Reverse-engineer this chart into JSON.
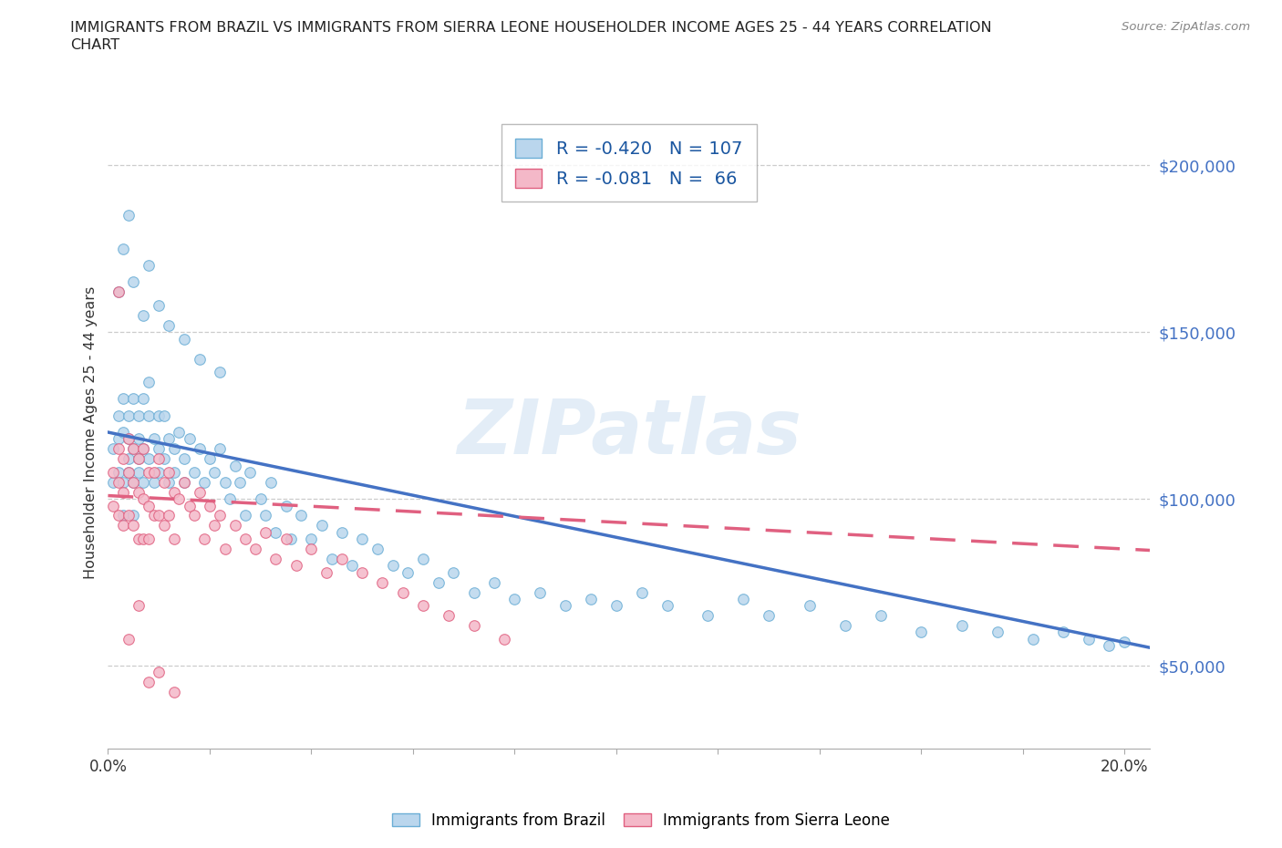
{
  "title_line1": "IMMIGRANTS FROM BRAZIL VS IMMIGRANTS FROM SIERRA LEONE HOUSEHOLDER INCOME AGES 25 - 44 YEARS CORRELATION",
  "title_line2": "CHART",
  "source_text": "Source: ZipAtlas.com",
  "ylabel": "Householder Income Ages 25 - 44 years",
  "xlim": [
    0.0,
    0.205
  ],
  "ylim": [
    25000,
    215000
  ],
  "yticks": [
    50000,
    100000,
    150000,
    200000
  ],
  "ytick_labels": [
    "$50,000",
    "$100,000",
    "$150,000",
    "$200,000"
  ],
  "xticks": [
    0.0,
    0.02,
    0.04,
    0.06,
    0.08,
    0.1,
    0.12,
    0.14,
    0.16,
    0.18,
    0.2
  ],
  "xtick_labels": [
    "0.0%",
    "",
    "",
    "",
    "",
    "",
    "",
    "",
    "",
    "",
    "20.0%"
  ],
  "brazil_fill": "#bad6ed",
  "brazil_edge": "#6baed6",
  "sierra_fill": "#f4b8c8",
  "sierra_edge": "#e06080",
  "brazil_line": "#4472c4",
  "sierra_line": "#e06080",
  "grid_color": "#cccccc",
  "R_brazil": -0.42,
  "N_brazil": 107,
  "R_sierra": -0.081,
  "N_sierra": 66,
  "brazil_trend_x0": 0.0,
  "brazil_trend_y0": 120000,
  "brazil_trend_x1": 0.2,
  "brazil_trend_y1": 57000,
  "sierra_trend_x0": 0.0,
  "sierra_trend_y0": 101000,
  "sierra_trend_x1": 0.2,
  "sierra_trend_y1": 85000,
  "brazil_x": [
    0.001,
    0.001,
    0.002,
    0.002,
    0.002,
    0.003,
    0.003,
    0.003,
    0.003,
    0.004,
    0.004,
    0.004,
    0.004,
    0.005,
    0.005,
    0.005,
    0.005,
    0.006,
    0.006,
    0.006,
    0.006,
    0.007,
    0.007,
    0.007,
    0.008,
    0.008,
    0.008,
    0.009,
    0.009,
    0.01,
    0.01,
    0.01,
    0.011,
    0.011,
    0.012,
    0.012,
    0.013,
    0.013,
    0.014,
    0.015,
    0.015,
    0.016,
    0.017,
    0.018,
    0.019,
    0.02,
    0.021,
    0.022,
    0.023,
    0.024,
    0.025,
    0.026,
    0.027,
    0.028,
    0.03,
    0.031,
    0.032,
    0.033,
    0.035,
    0.036,
    0.038,
    0.04,
    0.042,
    0.044,
    0.046,
    0.048,
    0.05,
    0.053,
    0.056,
    0.059,
    0.062,
    0.065,
    0.068,
    0.072,
    0.076,
    0.08,
    0.085,
    0.09,
    0.095,
    0.1,
    0.105,
    0.11,
    0.118,
    0.125,
    0.13,
    0.138,
    0.145,
    0.152,
    0.16,
    0.168,
    0.175,
    0.182,
    0.188,
    0.193,
    0.197,
    0.2,
    0.002,
    0.003,
    0.004,
    0.005,
    0.007,
    0.008,
    0.01,
    0.012,
    0.015,
    0.018,
    0.022
  ],
  "brazil_y": [
    115000,
    105000,
    125000,
    108000,
    118000,
    130000,
    120000,
    105000,
    95000,
    125000,
    112000,
    108000,
    118000,
    130000,
    115000,
    105000,
    95000,
    125000,
    112000,
    108000,
    118000,
    130000,
    115000,
    105000,
    125000,
    112000,
    135000,
    118000,
    105000,
    125000,
    115000,
    108000,
    125000,
    112000,
    118000,
    105000,
    115000,
    108000,
    120000,
    112000,
    105000,
    118000,
    108000,
    115000,
    105000,
    112000,
    108000,
    115000,
    105000,
    100000,
    110000,
    105000,
    95000,
    108000,
    100000,
    95000,
    105000,
    90000,
    98000,
    88000,
    95000,
    88000,
    92000,
    82000,
    90000,
    80000,
    88000,
    85000,
    80000,
    78000,
    82000,
    75000,
    78000,
    72000,
    75000,
    70000,
    72000,
    68000,
    70000,
    68000,
    72000,
    68000,
    65000,
    70000,
    65000,
    68000,
    62000,
    65000,
    60000,
    62000,
    60000,
    58000,
    60000,
    58000,
    56000,
    57000,
    162000,
    175000,
    185000,
    165000,
    155000,
    170000,
    158000,
    152000,
    148000,
    142000,
    138000
  ],
  "sierra_x": [
    0.001,
    0.001,
    0.002,
    0.002,
    0.002,
    0.003,
    0.003,
    0.003,
    0.004,
    0.004,
    0.004,
    0.005,
    0.005,
    0.005,
    0.006,
    0.006,
    0.006,
    0.007,
    0.007,
    0.007,
    0.008,
    0.008,
    0.008,
    0.009,
    0.009,
    0.01,
    0.01,
    0.011,
    0.011,
    0.012,
    0.012,
    0.013,
    0.013,
    0.014,
    0.015,
    0.016,
    0.017,
    0.018,
    0.019,
    0.02,
    0.021,
    0.022,
    0.023,
    0.025,
    0.027,
    0.029,
    0.031,
    0.033,
    0.035,
    0.037,
    0.04,
    0.043,
    0.046,
    0.05,
    0.054,
    0.058,
    0.062,
    0.067,
    0.072,
    0.078,
    0.002,
    0.004,
    0.006,
    0.008,
    0.01,
    0.013
  ],
  "sierra_y": [
    108000,
    98000,
    115000,
    105000,
    95000,
    112000,
    102000,
    92000,
    118000,
    108000,
    95000,
    115000,
    105000,
    92000,
    112000,
    102000,
    88000,
    115000,
    100000,
    88000,
    108000,
    98000,
    88000,
    108000,
    95000,
    112000,
    95000,
    105000,
    92000,
    108000,
    95000,
    102000,
    88000,
    100000,
    105000,
    98000,
    95000,
    102000,
    88000,
    98000,
    92000,
    95000,
    85000,
    92000,
    88000,
    85000,
    90000,
    82000,
    88000,
    80000,
    85000,
    78000,
    82000,
    78000,
    75000,
    72000,
    68000,
    65000,
    62000,
    58000,
    162000,
    58000,
    68000,
    45000,
    48000,
    42000
  ]
}
